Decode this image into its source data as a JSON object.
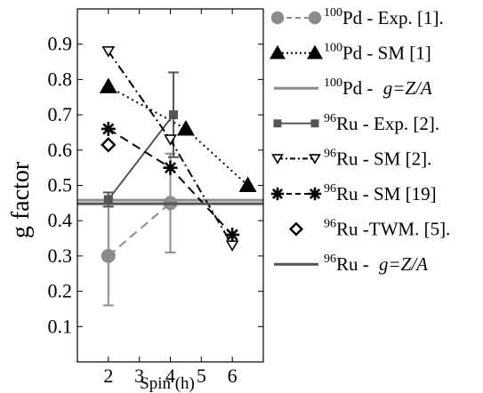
{
  "chart_data": {
    "type": "scatter",
    "xlabel": "Spin (h)",
    "ylabel": "g factor",
    "xlim": [
      1,
      7
    ],
    "ylim": [
      0,
      1
    ],
    "x_ticks": [
      2,
      3,
      4,
      5,
      6
    ],
    "y_ticks": [
      0.1,
      0.2,
      0.3,
      0.4,
      0.5,
      0.6,
      0.7,
      0.8,
      0.9
    ],
    "grid": false,
    "legend_position": "right-outside",
    "series": [
      {
        "key": "pd_exp",
        "legend_pre": "",
        "legend_sup": "100",
        "legend_text": "Pd - Exp. [1].",
        "color": "#8c8c8c",
        "marker": "circle",
        "line": "dashed",
        "points": [
          {
            "x": 2,
            "y": 0.3,
            "err": 0.14
          },
          {
            "x": 4,
            "y": 0.45,
            "err": 0.14
          }
        ]
      },
      {
        "key": "pd_sm",
        "legend_pre": "",
        "legend_sup": "100",
        "legend_text": "Pd - SM [1]",
        "color": "#000000",
        "marker": "triangle",
        "line": "dotted",
        "points": [
          {
            "x": 2,
            "y": 0.78
          },
          {
            "x": 4.5,
            "y": 0.66
          },
          {
            "x": 6.5,
            "y": 0.5
          }
        ]
      },
      {
        "key": "pd_za",
        "legend_pre": "",
        "legend_sup": "100",
        "legend_text": "Pd - ",
        "legend_italic": "g=Z/A",
        "color": "#8c8c8c",
        "marker": "none",
        "line": "hline",
        "value": 0.458
      },
      {
        "key": "ru_exp",
        "legend_pre": "",
        "legend_sup": "96",
        "legend_text": "Ru - Exp. [2].",
        "color": "#555555",
        "marker": "square",
        "line": "solid",
        "points": [
          {
            "x": 2,
            "y": 0.46,
            "err": 0.02
          },
          {
            "x": 4.1,
            "y": 0.7,
            "err": 0.12
          }
        ]
      },
      {
        "key": "ru_sm2",
        "legend_pre": "",
        "legend_sup": "96",
        "legend_text": "Ru - SM [2].",
        "color": "#000000",
        "marker": "triangle-down-open",
        "line": "dashdot",
        "points": [
          {
            "x": 2,
            "y": 0.88
          },
          {
            "x": 4,
            "y": 0.63
          },
          {
            "x": 6,
            "y": 0.33
          }
        ]
      },
      {
        "key": "ru_sm19",
        "legend_pre": "",
        "legend_sup": "96",
        "legend_text": "Ru - SM [19]",
        "color": "#000000",
        "marker": "asterisk",
        "line": "dashed",
        "points": [
          {
            "x": 2,
            "y": 0.66
          },
          {
            "x": 4,
            "y": 0.55
          },
          {
            "x": 6,
            "y": 0.36
          }
        ]
      },
      {
        "key": "ru_twm",
        "legend_pre": "",
        "legend_sup": "96",
        "legend_text": "Ru -TWM. [5].",
        "color": "#000000",
        "marker": "diamond-open",
        "line": "none",
        "points": [
          {
            "x": 2,
            "y": 0.615
          }
        ]
      },
      {
        "key": "ru_za",
        "legend_pre": "",
        "legend_sup": "96",
        "legend_text": "Ru - ",
        "legend_italic": "g=Z/A",
        "color": "#555555",
        "marker": "none",
        "line": "hline",
        "value": 0.448
      }
    ]
  }
}
